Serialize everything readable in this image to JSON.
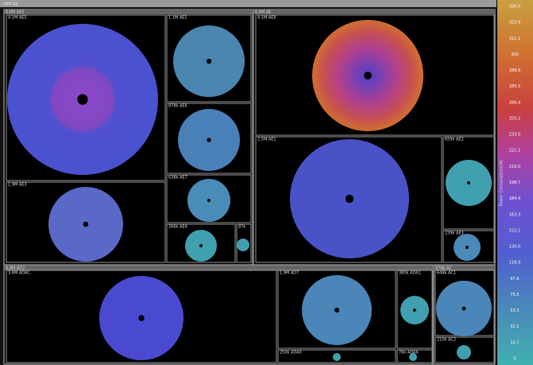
{
  "title": "48M AE",
  "groups": [
    {
      "label": "6.6M AE5",
      "panels": [
        {
          "label": "4.1M AE5"
        },
        {
          "label": "1.9M AE3"
        },
        {
          "label": "1.1M AE5"
        },
        {
          "label": "878k AE6"
        },
        {
          "label": "638k AE7"
        },
        {
          "label": "266k AE4"
        },
        {
          "label": "87k"
        }
      ]
    },
    {
      "label": "6.8M AE",
      "panels": [
        {
          "label": "4.1M AE8"
        },
        {
          "label": "2.5M AE1"
        },
        {
          "label": "659k AE2"
        },
        {
          "label": "239k AE3"
        }
      ]
    },
    {
      "label": "6.8M AD2",
      "panels": [
        {
          "label": "3.8M ADAC"
        },
        {
          "label": "1.9M AD7"
        },
        {
          "label": "380k ADA1"
        },
        {
          "label": "250k ADA0"
        },
        {
          "label": "76k ADA6"
        }
      ]
    },
    {
      "label": "878k AC",
      "panels": [
        {
          "label": "648k AC1"
        },
        {
          "label": "210k AC2"
        }
      ]
    }
  ],
  "colorbar": {
    "title": "Power Consumption(W)",
    "labels": [
      "330.0",
      "322.9",
      "311.1",
      "300",
      "288.8",
      "285.5",
      "266.4",
      "255.2",
      "233.0",
      "221.1",
      "210.0",
      "198.7",
      "184.4",
      "163.3",
      "152.1",
      "130.0",
      "118.9",
      "97.6",
      "75.5",
      "53.3",
      "32.1",
      "10.7",
      "0"
    ]
  }
}
